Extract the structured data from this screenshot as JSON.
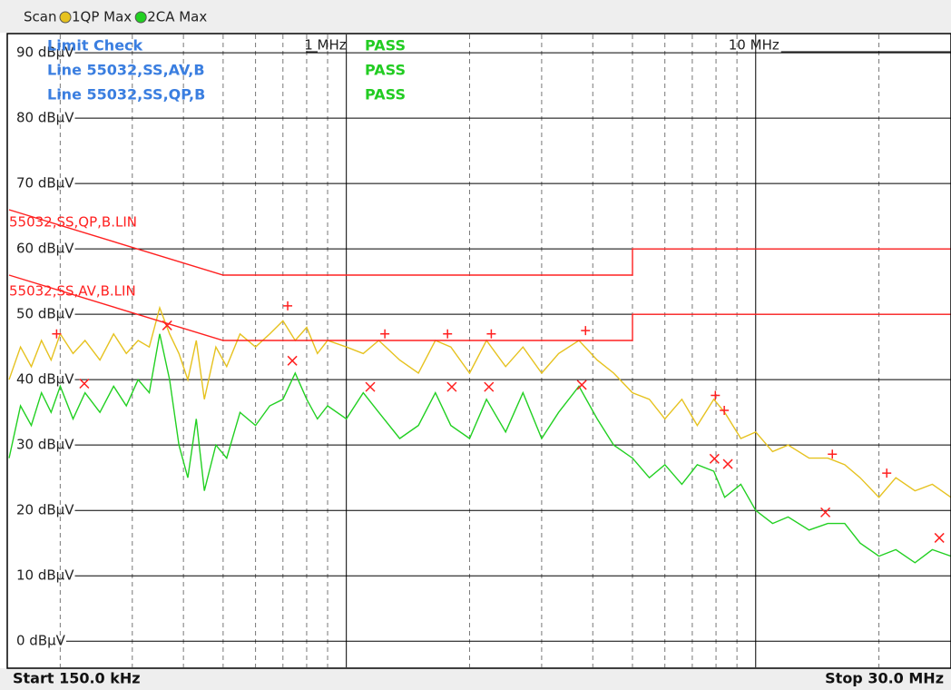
{
  "chart_data": {
    "type": "line",
    "xscale": "log",
    "grid": true,
    "header_title": "Scan",
    "start_label": "Start 150.0 kHz",
    "stop_label": "Stop 30.0 MHz",
    "xlim": [
      150000,
      30000000
    ],
    "ylim": [
      -4,
      92.8
    ],
    "xticks": [
      {
        "value": 1000000,
        "label": "1 MHz"
      },
      {
        "value": 10000000,
        "label": "10 MHz"
      }
    ],
    "x_minor_ticks": [
      200000,
      300000,
      400000,
      500000,
      600000,
      700000,
      800000,
      900000,
      2000000,
      3000000,
      4000000,
      5000000,
      6000000,
      7000000,
      8000000,
      9000000,
      20000000
    ],
    "yticks": [
      {
        "value": 0,
        "label": "0 dBµV"
      },
      {
        "value": 10,
        "label": "10 dBµV"
      },
      {
        "value": 20,
        "label": "20 dBµV"
      },
      {
        "value": 30,
        "label": "30 dBµV"
      },
      {
        "value": 40,
        "label": "40 dBµV"
      },
      {
        "value": 50,
        "label": "50 dBµV"
      },
      {
        "value": 60,
        "label": "60 dBµV"
      },
      {
        "value": 70,
        "label": "70 dBµV"
      },
      {
        "value": 80,
        "label": "80 dBµV"
      },
      {
        "value": 90,
        "label": "90 dBµV"
      }
    ],
    "x": [
      150000,
      160000,
      170000,
      180000,
      190000,
      200000,
      215000,
      230000,
      250000,
      270000,
      290000,
      310000,
      330000,
      350000,
      370000,
      390000,
      410000,
      430000,
      450000,
      480000,
      510000,
      550000,
      600000,
      650000,
      700000,
      750000,
      800000,
      850000,
      900000,
      1000000,
      1100000,
      1200000,
      1350000,
      1500000,
      1650000,
      1800000,
      2000000,
      2200000,
      2450000,
      2700000,
      3000000,
      3300000,
      3700000,
      4100000,
      4500000,
      5000000,
      5500000,
      6000000,
      6600000,
      7200000,
      7900000,
      8400000,
      9200000,
      10000000,
      11000000,
      12000000,
      13500000,
      15000000,
      16500000,
      18000000,
      20000000,
      22000000,
      24500000,
      27000000,
      30000000
    ],
    "series": [
      {
        "name": "1QP Max",
        "color": "#e6c21f",
        "values": [
          40,
          45,
          42,
          46,
          43,
          47,
          44,
          46,
          43,
          47,
          44,
          46,
          45,
          51,
          47,
          44,
          40,
          46,
          37,
          45,
          42,
          47,
          45,
          47,
          49,
          46,
          48,
          44,
          46,
          45,
          44,
          46,
          43,
          41,
          46,
          45,
          41,
          46,
          42,
          45,
          41,
          44,
          46,
          43,
          41,
          38,
          37,
          34,
          37,
          33,
          37,
          35,
          31,
          32,
          29,
          30,
          28,
          28,
          27,
          25,
          22,
          25,
          23,
          24,
          22
        ]
      },
      {
        "name": "2CA Max",
        "color": "#22d022",
        "values": [
          28,
          36,
          33,
          38,
          35,
          39,
          34,
          38,
          35,
          39,
          36,
          40,
          38,
          47,
          40,
          30,
          25,
          34,
          23,
          30,
          28,
          35,
          33,
          36,
          37,
          41,
          37,
          34,
          36,
          34,
          38,
          35,
          31,
          33,
          38,
          33,
          31,
          37,
          32,
          38,
          31,
          35,
          39,
          34,
          30,
          28,
          25,
          27,
          24,
          27,
          26,
          22,
          24,
          20,
          18,
          19,
          17,
          18,
          18,
          15,
          13,
          14,
          12,
          14,
          13
        ]
      }
    ],
    "limit_lines": [
      {
        "name": "55032,SS,QP,B.LIN",
        "color": "#ff2020",
        "x": [
          150000,
          500000,
          5000000,
          5000000,
          30000000
        ],
        "values": [
          66,
          56,
          56,
          60,
          60
        ]
      },
      {
        "name": "55032,SS,AV,B.LIN",
        "color": "#ff2020",
        "x": [
          150000,
          500000,
          5000000,
          5000000,
          30000000
        ],
        "values": [
          56,
          46,
          46,
          50,
          50
        ]
      }
    ],
    "markers": [
      {
        "symbol": "+",
        "color": "#ff2020",
        "x": [
          196000,
          719000,
          1242000,
          1767000,
          2260000,
          3840000,
          7970000,
          8380000,
          15390000,
          20900000
        ],
        "values": [
          47,
          51.3,
          47,
          47,
          47,
          47.5,
          37.6,
          35.3,
          28.6,
          25.7
        ]
      },
      {
        "symbol": "x",
        "color": "#ff2020",
        "x": [
          229000,
          365000,
          738000,
          1144000,
          1810000,
          2230000,
          3760000,
          7930000,
          8550000,
          14800000,
          28100000
        ],
        "values": [
          39.4,
          48.3,
          42.9,
          38.9,
          38.9,
          38.9,
          39.2,
          27.9,
          27.1,
          19.7,
          15.8
        ]
      }
    ],
    "limit_check": {
      "title": "Limit Check",
      "result": "PASS",
      "lines": [
        {
          "name": "Line 55032,SS,AV,B",
          "result": "PASS"
        },
        {
          "name": "Line 55032,SS,QP,B",
          "result": "PASS"
        }
      ]
    }
  }
}
